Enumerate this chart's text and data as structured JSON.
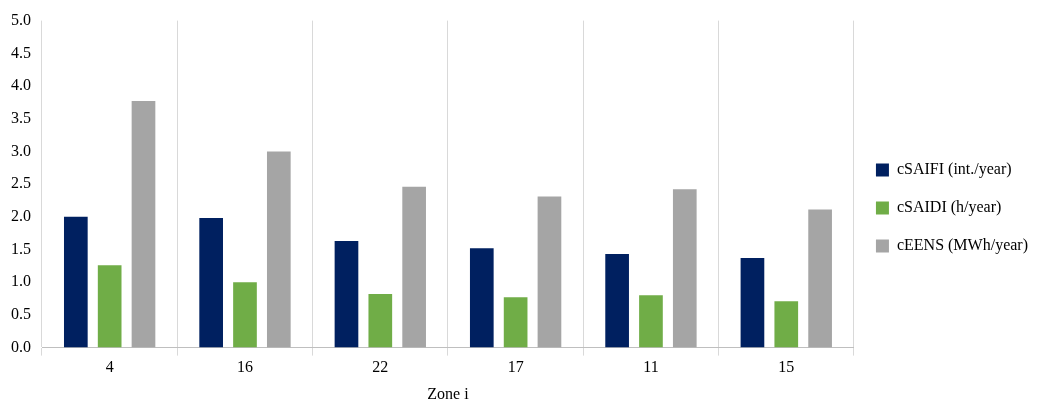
{
  "chart_data": {
    "type": "bar",
    "xlabel": "Zone i",
    "categories": [
      "4",
      "16",
      "22",
      "17",
      "11",
      "15"
    ],
    "series": [
      {
        "name": "cSAIFI (int./year)",
        "color": "#002060",
        "values": [
          2.0,
          1.98,
          1.63,
          1.52,
          1.43,
          1.37
        ]
      },
      {
        "name": "cSAIDI (h/year)",
        "color": "#70ad47",
        "values": [
          1.26,
          1.0,
          0.82,
          0.77,
          0.8,
          0.71
        ]
      },
      {
        "name": "cEENS (MWh/year)",
        "color": "#a5a5a5",
        "values": [
          3.77,
          3.0,
          2.46,
          2.31,
          2.42,
          2.11
        ]
      }
    ],
    "ylim": [
      0,
      5
    ],
    "yticks": [
      {
        "value": 0,
        "label": "0.0"
      },
      {
        "value": 0.5,
        "label": "0.5"
      },
      {
        "value": 1,
        "label": "1.0"
      },
      {
        "value": 1.5,
        "label": "1.5"
      },
      {
        "value": 2,
        "label": "2.0"
      },
      {
        "value": 2.5,
        "label": "2.5"
      },
      {
        "value": 3,
        "label": "3.0"
      },
      {
        "value": 3.5,
        "label": "3.5"
      },
      {
        "value": 4,
        "label": "4.0"
      },
      {
        "value": 4.5,
        "label": "4.5"
      },
      {
        "value": 5,
        "label": "5.0"
      }
    ],
    "grid": "x",
    "legend": "right"
  }
}
